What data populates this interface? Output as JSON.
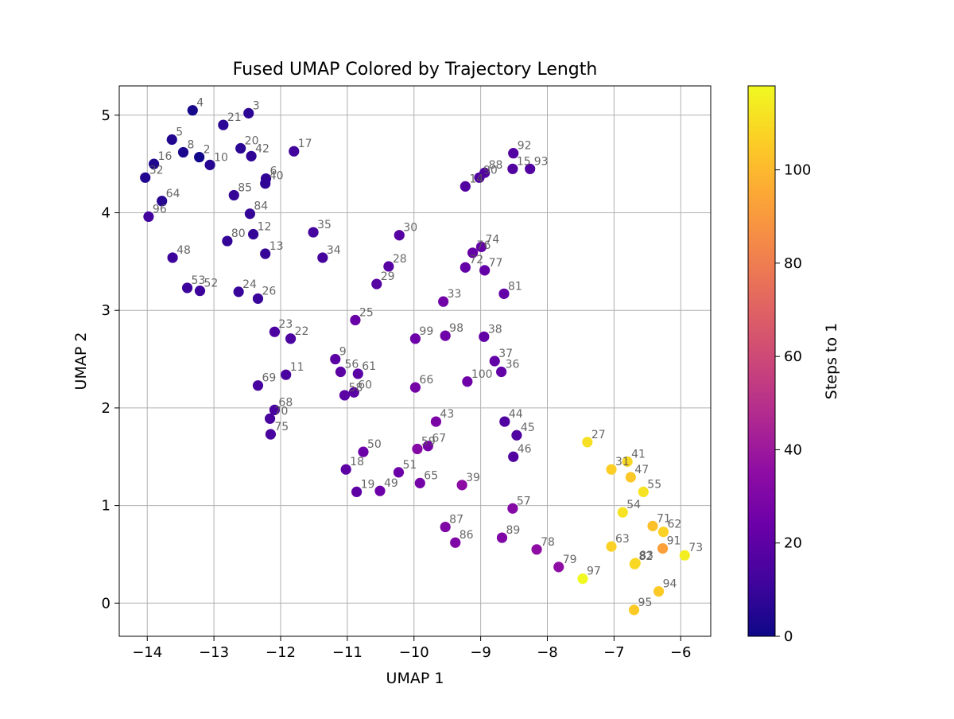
{
  "chart_data": {
    "type": "scatter",
    "title": "Fused UMAP Colored by Trajectory Length",
    "xlabel": "UMAP 1",
    "ylabel": "UMAP 2",
    "xlim": [
      -14.42,
      -5.55
    ],
    "ylim": [
      -0.34,
      5.3
    ],
    "xticks": [
      -14,
      -13,
      -12,
      -11,
      -10,
      -9,
      -8,
      -7,
      -6
    ],
    "yticks": [
      0,
      1,
      2,
      3,
      4,
      5
    ],
    "grid": true,
    "colorbar": {
      "label": "Steps to 1",
      "colormap": "plasma",
      "range": [
        0,
        118
      ],
      "ticks": [
        0,
        20,
        40,
        60,
        80,
        100
      ]
    },
    "points": [
      {
        "label": "2",
        "x": -13.22,
        "y": 4.57,
        "steps": 1
      },
      {
        "label": "3",
        "x": -12.48,
        "y": 5.02,
        "steps": 7
      },
      {
        "label": "4",
        "x": -13.32,
        "y": 5.05,
        "steps": 2
      },
      {
        "label": "5",
        "x": -13.63,
        "y": 4.75,
        "steps": 5
      },
      {
        "label": "6",
        "x": -12.22,
        "y": 4.35,
        "steps": 8
      },
      {
        "label": "8",
        "x": -13.46,
        "y": 4.62,
        "steps": 3
      },
      {
        "label": "9",
        "x": -11.18,
        "y": 2.5,
        "steps": 19
      },
      {
        "label": "10",
        "x": -13.06,
        "y": 4.49,
        "steps": 6
      },
      {
        "label": "11",
        "x": -11.92,
        "y": 2.34,
        "steps": 14
      },
      {
        "label": "12",
        "x": -12.41,
        "y": 3.78,
        "steps": 9
      },
      {
        "label": "13",
        "x": -12.23,
        "y": 3.58,
        "steps": 9
      },
      {
        "label": "14",
        "x": -9.23,
        "y": 4.27,
        "steps": 17
      },
      {
        "label": "15",
        "x": -8.52,
        "y": 4.45,
        "steps": 17
      },
      {
        "label": "16",
        "x": -13.9,
        "y": 4.5,
        "steps": 4
      },
      {
        "label": "17",
        "x": -11.8,
        "y": 4.63,
        "steps": 12
      },
      {
        "label": "18",
        "x": -11.02,
        "y": 1.37,
        "steps": 20
      },
      {
        "label": "19",
        "x": -10.86,
        "y": 1.14,
        "steps": 20
      },
      {
        "label": "20",
        "x": -12.6,
        "y": 4.66,
        "steps": 7
      },
      {
        "label": "21",
        "x": -12.86,
        "y": 4.9,
        "steps": 7
      },
      {
        "label": "22",
        "x": -11.85,
        "y": 2.71,
        "steps": 15
      },
      {
        "label": "23",
        "x": -12.09,
        "y": 2.78,
        "steps": 15
      },
      {
        "label": "24",
        "x": -12.63,
        "y": 3.19,
        "steps": 10
      },
      {
        "label": "25",
        "x": -10.88,
        "y": 2.9,
        "steps": 23
      },
      {
        "label": "26",
        "x": -12.34,
        "y": 3.12,
        "steps": 10
      },
      {
        "label": "27",
        "x": -7.4,
        "y": 1.65,
        "steps": 111
      },
      {
        "label": "28",
        "x": -10.38,
        "y": 3.45,
        "steps": 18
      },
      {
        "label": "29",
        "x": -10.56,
        "y": 3.27,
        "steps": 18
      },
      {
        "label": "30",
        "x": -10.22,
        "y": 3.77,
        "steps": 18
      },
      {
        "label": "31",
        "x": -7.04,
        "y": 1.37,
        "steps": 106
      },
      {
        "label": "32",
        "x": -14.03,
        "y": 4.36,
        "steps": 5
      },
      {
        "label": "33",
        "x": -9.56,
        "y": 3.09,
        "steps": 26
      },
      {
        "label": "34",
        "x": -11.37,
        "y": 3.54,
        "steps": 13
      },
      {
        "label": "35",
        "x": -11.51,
        "y": 3.8,
        "steps": 13
      },
      {
        "label": "36",
        "x": -8.69,
        "y": 2.37,
        "steps": 21
      },
      {
        "label": "37",
        "x": -8.79,
        "y": 2.48,
        "steps": 21
      },
      {
        "label": "38",
        "x": -8.95,
        "y": 2.73,
        "steps": 21
      },
      {
        "label": "39",
        "x": -9.28,
        "y": 1.21,
        "steps": 34
      },
      {
        "label": "40",
        "x": -12.23,
        "y": 4.3,
        "steps": 8
      },
      {
        "label": "41",
        "x": -6.8,
        "y": 1.45,
        "steps": 109
      },
      {
        "label": "42",
        "x": -12.44,
        "y": 4.58,
        "steps": 8
      },
      {
        "label": "43",
        "x": -9.67,
        "y": 1.86,
        "steps": 29
      },
      {
        "label": "44",
        "x": -8.64,
        "y": 1.86,
        "steps": 16
      },
      {
        "label": "45",
        "x": -8.46,
        "y": 1.72,
        "steps": 16
      },
      {
        "label": "46",
        "x": -8.51,
        "y": 1.5,
        "steps": 16
      },
      {
        "label": "47",
        "x": -6.75,
        "y": 1.29,
        "steps": 104
      },
      {
        "label": "48",
        "x": -13.62,
        "y": 3.54,
        "steps": 11
      },
      {
        "label": "49",
        "x": -10.51,
        "y": 1.15,
        "steps": 24
      },
      {
        "label": "50",
        "x": -10.76,
        "y": 1.55,
        "steps": 24
      },
      {
        "label": "51",
        "x": -10.23,
        "y": 1.34,
        "steps": 24
      },
      {
        "label": "52",
        "x": -13.21,
        "y": 3.2,
        "steps": 11
      },
      {
        "label": "53",
        "x": -13.4,
        "y": 3.23,
        "steps": 11
      },
      {
        "label": "54",
        "x": -6.87,
        "y": 0.93,
        "steps": 112
      },
      {
        "label": "55",
        "x": -6.56,
        "y": 1.14,
        "steps": 112
      },
      {
        "label": "56",
        "x": -11.1,
        "y": 2.37,
        "steps": 19
      },
      {
        "label": "57",
        "x": -8.52,
        "y": 0.97,
        "steps": 32
      },
      {
        "label": "58",
        "x": -11.04,
        "y": 2.13,
        "steps": 19
      },
      {
        "label": "59",
        "x": -9.95,
        "y": 1.58,
        "steps": 32
      },
      {
        "label": "60",
        "x": -10.9,
        "y": 2.16,
        "steps": 19
      },
      {
        "label": "61",
        "x": -10.84,
        "y": 2.35,
        "steps": 19
      },
      {
        "label": "62",
        "x": -6.26,
        "y": 0.73,
        "steps": 107
      },
      {
        "label": "63",
        "x": -7.04,
        "y": 0.58,
        "steps": 107
      },
      {
        "label": "64",
        "x": -13.78,
        "y": 4.12,
        "steps": 6
      },
      {
        "label": "65",
        "x": -9.91,
        "y": 1.23,
        "steps": 27
      },
      {
        "label": "66",
        "x": -9.98,
        "y": 2.21,
        "steps": 27
      },
      {
        "label": "67",
        "x": -9.79,
        "y": 1.61,
        "steps": 27
      },
      {
        "label": "68",
        "x": -12.09,
        "y": 1.98,
        "steps": 14
      },
      {
        "label": "69",
        "x": -12.34,
        "y": 2.23,
        "steps": 14
      },
      {
        "label": "70",
        "x": -12.16,
        "y": 1.89,
        "steps": 14
      },
      {
        "label": "71",
        "x": -6.42,
        "y": 0.79,
        "steps": 102
      },
      {
        "label": "72",
        "x": -9.23,
        "y": 3.44,
        "steps": 22
      },
      {
        "label": "73",
        "x": -5.94,
        "y": 0.49,
        "steps": 115
      },
      {
        "label": "74",
        "x": -8.99,
        "y": 3.65,
        "steps": 22
      },
      {
        "label": "75",
        "x": -12.15,
        "y": 1.73,
        "steps": 14
      },
      {
        "label": "76",
        "x": -9.12,
        "y": 3.59,
        "steps": 22
      },
      {
        "label": "77",
        "x": -8.94,
        "y": 3.41,
        "steps": 22
      },
      {
        "label": "78",
        "x": -8.16,
        "y": 0.55,
        "steps": 35
      },
      {
        "label": "79",
        "x": -7.83,
        "y": 0.37,
        "steps": 35
      },
      {
        "label": "80",
        "x": -12.8,
        "y": 3.71,
        "steps": 9
      },
      {
        "label": "81",
        "x": -8.65,
        "y": 3.17,
        "steps": 22
      },
      {
        "label": "82",
        "x": -6.69,
        "y": 0.4,
        "steps": 109
      },
      {
        "label": "83",
        "x": -6.68,
        "y": 0.41,
        "steps": 109
      },
      {
        "label": "84",
        "x": -12.46,
        "y": 3.99,
        "steps": 9
      },
      {
        "label": "85",
        "x": -12.7,
        "y": 4.18,
        "steps": 9
      },
      {
        "label": "86",
        "x": -9.38,
        "y": 0.62,
        "steps": 30
      },
      {
        "label": "87",
        "x": -9.53,
        "y": 0.78,
        "steps": 30
      },
      {
        "label": "88",
        "x": -8.94,
        "y": 4.41,
        "steps": 17
      },
      {
        "label": "89",
        "x": -8.68,
        "y": 0.67,
        "steps": 30
      },
      {
        "label": "90",
        "x": -9.02,
        "y": 4.36,
        "steps": 17
      },
      {
        "label": "91",
        "x": -6.27,
        "y": 0.56,
        "steps": 92
      },
      {
        "label": "92",
        "x": -8.51,
        "y": 4.61,
        "steps": 17
      },
      {
        "label": "93",
        "x": -8.26,
        "y": 4.45,
        "steps": 17
      },
      {
        "label": "94",
        "x": -6.33,
        "y": 0.12,
        "steps": 105
      },
      {
        "label": "95",
        "x": -6.7,
        "y": -0.07,
        "steps": 105
      },
      {
        "label": "96",
        "x": -13.98,
        "y": 3.96,
        "steps": 12
      },
      {
        "label": "97",
        "x": -7.47,
        "y": 0.25,
        "steps": 118
      },
      {
        "label": "98",
        "x": -9.53,
        "y": 2.74,
        "steps": 25
      },
      {
        "label": "99",
        "x": -9.98,
        "y": 2.71,
        "steps": 25
      },
      {
        "label": "100",
        "x": -9.2,
        "y": 2.27,
        "steps": 25
      }
    ]
  }
}
